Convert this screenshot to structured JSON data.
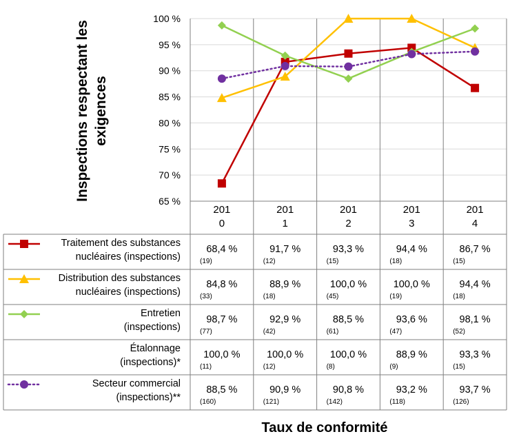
{
  "chart_data": {
    "type": "line",
    "ylabel": "Inspections respectant les exigences",
    "xlabel": "Taux de conformité",
    "ylim": [
      65,
      100
    ],
    "y_ticks": [
      "65 %",
      "70 %",
      "75 %",
      "80 %",
      "85 %",
      "90 %",
      "95 %",
      "100 %"
    ],
    "grid": true,
    "categories": [
      {
        "line1": "201",
        "line2": "0"
      },
      {
        "line1": "201",
        "line2": "1"
      },
      {
        "line1": "201",
        "line2": "2"
      },
      {
        "line1": "201",
        "line2": "3"
      },
      {
        "line1": "201",
        "line2": "4"
      }
    ],
    "x": [
      2010,
      2011,
      2012,
      2013,
      2014
    ],
    "series": [
      {
        "name_lines": [
          "Traitement des substances",
          "nucléaires (inspections)"
        ],
        "color": "#c00000",
        "marker": "square",
        "dashed": false,
        "show_line": true,
        "values": [
          68.4,
          91.7,
          93.3,
          94.4,
          86.7
        ],
        "labels": [
          "68,4 %",
          "91,7 %",
          "93,3 %",
          "94,4 %",
          "86,7 %"
        ],
        "counts": [
          "(19)",
          "(12)",
          "(15)",
          "(18)",
          "(15)"
        ]
      },
      {
        "name_lines": [
          "Distribution des substances",
          "nucléaires (inspections)"
        ],
        "color": "#ffc000",
        "marker": "triangle",
        "dashed": false,
        "show_line": true,
        "values": [
          84.8,
          88.9,
          100.0,
          100.0,
          94.4
        ],
        "labels": [
          "84,8 %",
          "88,9 %",
          "100,0 %",
          "100,0 %",
          "94,4 %"
        ],
        "counts": [
          "(33)",
          "(18)",
          "(45)",
          "(19)",
          "(18)"
        ]
      },
      {
        "name_lines": [
          "Entretien",
          "(inspections)"
        ],
        "color": "#92d050",
        "marker": "diamond",
        "dashed": false,
        "show_line": true,
        "values": [
          98.7,
          92.9,
          88.5,
          93.6,
          98.1
        ],
        "labels": [
          "98,7 %",
          "92,9 %",
          "88,5 %",
          "93,6 %",
          "98,1 %"
        ],
        "counts": [
          "(77)",
          "(42)",
          "(61)",
          "(47)",
          "(52)"
        ]
      },
      {
        "name_lines": [
          "Étalonnage",
          "(inspections)*"
        ],
        "color": "#000000",
        "marker": "none",
        "dashed": false,
        "show_line": false,
        "values": [
          100.0,
          100.0,
          100.0,
          88.9,
          93.3
        ],
        "labels": [
          "100,0 %",
          "100,0 %",
          "100,0 %",
          "88,9 %",
          "93,3 %"
        ],
        "counts": [
          "(11)",
          "(12)",
          "(8)",
          "(9)",
          "(15)"
        ]
      },
      {
        "name_lines": [
          "Secteur commercial",
          "(inspections)**"
        ],
        "color": "#7030a0",
        "marker": "circle",
        "dashed": true,
        "show_line": true,
        "values": [
          88.5,
          90.9,
          90.8,
          93.2,
          93.7
        ],
        "labels": [
          "88,5 %",
          "90,9 %",
          "90,8 %",
          "93,2 %",
          "93,7 %"
        ],
        "counts": [
          "(160)",
          "(121)",
          "(142)",
          "(118)",
          "(126)"
        ]
      }
    ]
  }
}
